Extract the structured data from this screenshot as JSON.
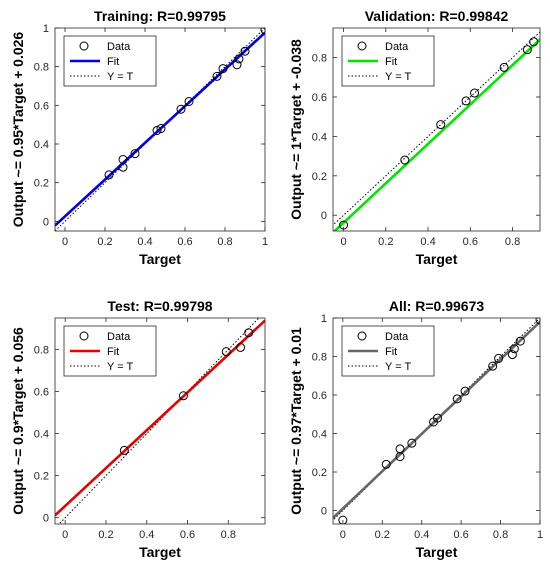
{
  "chart_data": [
    {
      "type": "scatter",
      "title": "Training: R=0.99795",
      "xlabel": "Target",
      "ylabel": "Output ~= 0.95*Target + 0.026",
      "xlim": [
        -0.05,
        1.0
      ],
      "ylim": [
        -0.05,
        1.0
      ],
      "xticks": [
        0,
        0.2,
        0.4,
        0.6,
        0.8,
        1
      ],
      "yticks": [
        0,
        0.2,
        0.4,
        0.6,
        0.8,
        1
      ],
      "fit": {
        "slope": 0.95,
        "intercept": 0.026
      },
      "fit_color": "#0000e6",
      "legend": {
        "data_label": "Data",
        "fit_label": "Fit",
        "ref_label": "Y = T",
        "position": "top-left"
      },
      "points": [
        {
          "x": 0.22,
          "y": 0.24
        },
        {
          "x": 0.29,
          "y": 0.28
        },
        {
          "x": 0.29,
          "y": 0.32
        },
        {
          "x": 0.35,
          "y": 0.35
        },
        {
          "x": 0.46,
          "y": 0.47
        },
        {
          "x": 0.48,
          "y": 0.48
        },
        {
          "x": 0.58,
          "y": 0.58
        },
        {
          "x": 0.62,
          "y": 0.62
        },
        {
          "x": 0.76,
          "y": 0.75
        },
        {
          "x": 0.79,
          "y": 0.79
        },
        {
          "x": 0.86,
          "y": 0.81
        },
        {
          "x": 0.87,
          "y": 0.84
        },
        {
          "x": 0.9,
          "y": 0.88
        },
        {
          "x": 1.0,
          "y": 0.99
        }
      ]
    },
    {
      "type": "scatter",
      "title": "Validation: R=0.99842",
      "xlabel": "Target",
      "ylabel": "Output ~= 1*Target + -0.038",
      "xlim": [
        -0.05,
        0.93
      ],
      "ylim": [
        -0.08,
        0.95
      ],
      "xticks": [
        0,
        0.2,
        0.4,
        0.6,
        0.8
      ],
      "yticks": [
        0,
        0.2,
        0.4,
        0.6,
        0.8
      ],
      "fit": {
        "slope": 1.0,
        "intercept": -0.038
      },
      "fit_color": "#00e600",
      "legend": {
        "data_label": "Data",
        "fit_label": "Fit",
        "ref_label": "Y = T",
        "position": "top-left"
      },
      "points": [
        {
          "x": 0.0,
          "y": -0.05
        },
        {
          "x": 0.29,
          "y": 0.28
        },
        {
          "x": 0.46,
          "y": 0.46
        },
        {
          "x": 0.58,
          "y": 0.58
        },
        {
          "x": 0.62,
          "y": 0.62
        },
        {
          "x": 0.76,
          "y": 0.75
        },
        {
          "x": 0.87,
          "y": 0.84
        },
        {
          "x": 0.9,
          "y": 0.88
        }
      ]
    },
    {
      "type": "scatter",
      "title": "Test: R=0.99798",
      "xlabel": "Target",
      "ylabel": "Output ~= 0.9*Target + 0.056",
      "xlim": [
        -0.05,
        0.98
      ],
      "ylim": [
        -0.03,
        0.95
      ],
      "xticks": [
        0,
        0.2,
        0.4,
        0.6,
        0.8
      ],
      "yticks": [
        0,
        0.2,
        0.4,
        0.6,
        0.8
      ],
      "fit": {
        "slope": 0.9,
        "intercept": 0.056
      },
      "fit_color": "#e60000",
      "legend": {
        "data_label": "Data",
        "fit_label": "Fit",
        "ref_label": "Y = T",
        "position": "top-left"
      },
      "points": [
        {
          "x": 0.29,
          "y": 0.32
        },
        {
          "x": 0.58,
          "y": 0.58
        },
        {
          "x": 0.79,
          "y": 0.79
        },
        {
          "x": 0.86,
          "y": 0.81
        },
        {
          "x": 0.9,
          "y": 0.88
        }
      ]
    },
    {
      "type": "scatter",
      "title": "All: R=0.99673",
      "xlabel": "Target",
      "ylabel": "Output ~= 0.97*Target + 0.01",
      "xlim": [
        -0.05,
        1.0
      ],
      "ylim": [
        -0.07,
        1.0
      ],
      "xticks": [
        0,
        0.2,
        0.4,
        0.6,
        0.8,
        1
      ],
      "yticks": [
        0,
        0.2,
        0.4,
        0.6,
        0.8,
        1
      ],
      "fit": {
        "slope": 0.97,
        "intercept": 0.01
      },
      "fit_color": "#666666",
      "legend": {
        "data_label": "Data",
        "fit_label": "Fit",
        "ref_label": "Y = T",
        "position": "top-left"
      },
      "points": [
        {
          "x": 0.0,
          "y": -0.05
        },
        {
          "x": 0.22,
          "y": 0.24
        },
        {
          "x": 0.29,
          "y": 0.28
        },
        {
          "x": 0.29,
          "y": 0.32
        },
        {
          "x": 0.35,
          "y": 0.35
        },
        {
          "x": 0.46,
          "y": 0.46
        },
        {
          "x": 0.48,
          "y": 0.48
        },
        {
          "x": 0.58,
          "y": 0.58
        },
        {
          "x": 0.62,
          "y": 0.62
        },
        {
          "x": 0.76,
          "y": 0.75
        },
        {
          "x": 0.79,
          "y": 0.79
        },
        {
          "x": 0.86,
          "y": 0.81
        },
        {
          "x": 0.87,
          "y": 0.84
        },
        {
          "x": 0.9,
          "y": 0.88
        },
        {
          "x": 1.0,
          "y": 0.99
        }
      ]
    }
  ]
}
